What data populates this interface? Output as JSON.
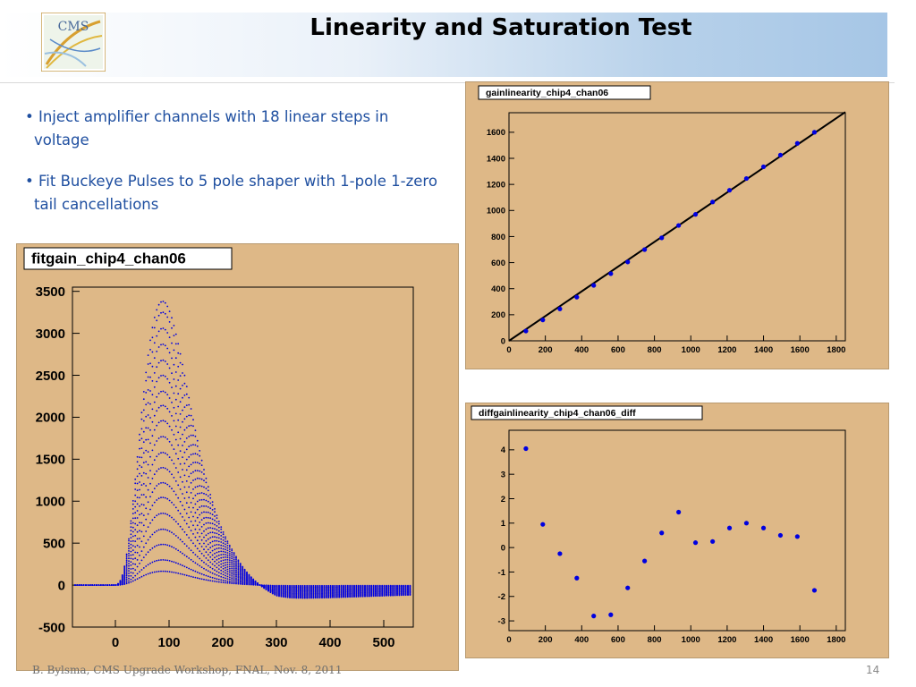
{
  "header": {
    "title": "Linearity and Saturation Test",
    "logo_text": "CMS"
  },
  "bullets": [
    "• Inject amplifier channels  with 18 linear steps in voltage",
    "• Fit Buckeye Pulses to 5 pole shaper with 1-pole 1-zero  tail cancellations"
  ],
  "footer": {
    "author": "B. Bylsma, CMS Upgrade Workshop, FNAL, Nov. 8, 2011",
    "page": "14"
  },
  "colors": {
    "panel_background": "#deb887",
    "marker": "#0000e0",
    "title_text": "#1f4fa0"
  },
  "chart_data": [
    {
      "type": "scatter",
      "title": "fitgain_chip4_chan06",
      "xlim": [
        -80,
        555
      ],
      "ylim": [
        -500,
        3550
      ],
      "xticks": [
        "0",
        "100",
        "200",
        "300",
        "400",
        "500"
      ],
      "xtick_values": [
        0,
        100,
        200,
        300,
        400,
        500
      ],
      "yticks": [
        "-500",
        "0",
        "500",
        "1000",
        "1500",
        "2000",
        "2500",
        "3000",
        "3500"
      ],
      "ytick_values": [
        -500,
        0,
        500,
        1000,
        1500,
        2000,
        2500,
        3000,
        3500
      ],
      "pulse_amplitudes": [
        165,
        300,
        485,
        665,
        855,
        1045,
        1220,
        1400,
        1580,
        1770,
        1960,
        2140,
        2310,
        2500,
        2680,
        2870,
        3060,
        3250,
        3380
      ],
      "peak_x": 88,
      "grid": false
    },
    {
      "type": "line",
      "title": "gainlinearity_chip4_chan06",
      "xlim": [
        0,
        1850
      ],
      "ylim": [
        0,
        1750
      ],
      "xticks": [
        "0",
        "200",
        "400",
        "600",
        "800",
        "1000",
        "1200",
        "1400",
        "1600",
        "1800"
      ],
      "xtick_values": [
        0,
        200,
        400,
        600,
        800,
        1000,
        1200,
        1400,
        1600,
        1800
      ],
      "yticks": [
        "0",
        "200",
        "400",
        "600",
        "800",
        "1000",
        "1200",
        "1400",
        "1600"
      ],
      "ytick_values": [
        0,
        200,
        400,
        600,
        800,
        1000,
        1200,
        1400,
        1600
      ],
      "x": [
        93,
        186,
        280,
        373,
        466,
        560,
        653,
        746,
        840,
        933,
        1026,
        1120,
        1213,
        1306,
        1400,
        1493,
        1586,
        1680
      ],
      "y": [
        75,
        160,
        245,
        335,
        425,
        515,
        605,
        700,
        790,
        885,
        970,
        1065,
        1155,
        1245,
        1335,
        1425,
        1515,
        1600
      ],
      "fit_line": {
        "x": [
          0,
          1850
        ],
        "y": [
          0,
          1755
        ]
      },
      "grid": false
    },
    {
      "type": "scatter",
      "title": "diffgainlinearity_chip4_chan06_diff",
      "xlim": [
        0,
        1850
      ],
      "ylim": [
        -3.4,
        4.8
      ],
      "xticks": [
        "0",
        "200",
        "400",
        "600",
        "800",
        "1000",
        "1200",
        "1400",
        "1600",
        "1800"
      ],
      "xtick_values": [
        0,
        200,
        400,
        600,
        800,
        1000,
        1200,
        1400,
        1600,
        1800
      ],
      "yticks": [
        "-3",
        "-2",
        "-1",
        "0",
        "1",
        "2",
        "3",
        "4"
      ],
      "ytick_values": [
        -3,
        -2,
        -1,
        0,
        1,
        2,
        3,
        4
      ],
      "x": [
        93,
        186,
        280,
        373,
        466,
        560,
        653,
        746,
        840,
        933,
        1026,
        1120,
        1213,
        1306,
        1400,
        1493,
        1586,
        1680
      ],
      "y": [
        4.05,
        0.95,
        -0.25,
        -1.25,
        -2.8,
        -2.75,
        -1.65,
        -0.55,
        0.6,
        1.45,
        0.2,
        0.25,
        0.8,
        1.0,
        0.8,
        0.5,
        0.45,
        -1.75
      ],
      "grid": false
    }
  ]
}
